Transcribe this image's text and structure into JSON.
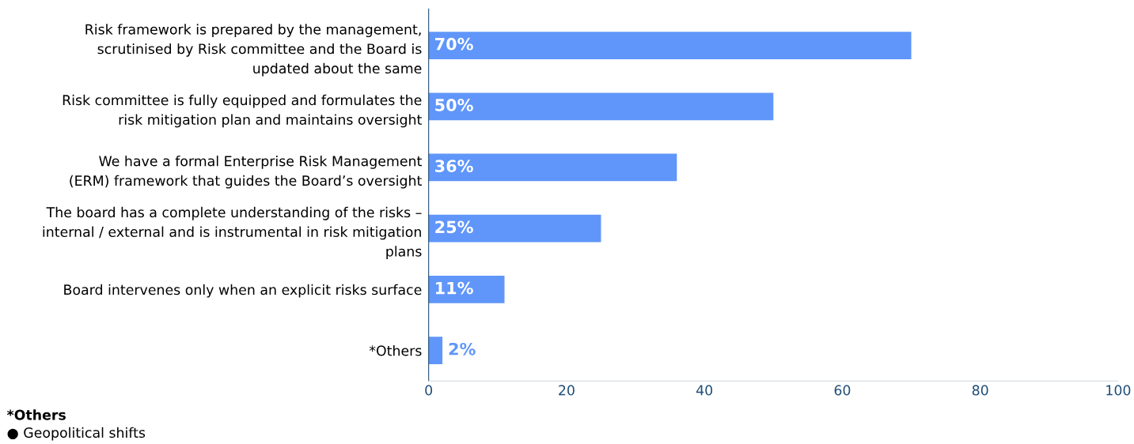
{
  "chart_data": {
    "type": "bar",
    "orientation": "horizontal",
    "categories": [
      "Risk framework is prepared by the management,\nscrutinised by Risk committee and the Board is\nupdated about the same",
      "Risk committee is fully equipped and formulates the\nrisk mitigation plan and maintains oversight",
      "We have a formal Enterprise Risk Management\n(ERM) framework that guides the Board’s oversight",
      "The board has a complete understanding of the risks –\ninternal / external and is instrumental in risk mitigation\nplans",
      "Board intervenes only when an explicit risks surface",
      "*Others"
    ],
    "values": [
      70,
      50,
      36,
      25,
      11,
      2
    ],
    "value_labels": [
      "70%",
      "50%",
      "36%",
      "25%",
      "11%",
      "2%"
    ],
    "color": "#6096fa",
    "xlim": [
      0,
      100
    ],
    "xticks": [
      0,
      20,
      40,
      60,
      80,
      100
    ],
    "grid": false,
    "annotations": [
      "*Others",
      "● Geopolitical shifts"
    ]
  }
}
